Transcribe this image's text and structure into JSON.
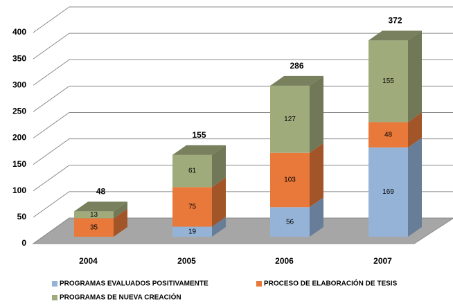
{
  "chart_data": {
    "type": "bar3d_stacked",
    "categories": [
      "2004",
      "2005",
      "2006",
      "2007"
    ],
    "series": [
      {
        "name": "PROGRAMAS EVALUADOS POSITIVAMENTE",
        "color": "#95b3d7",
        "values": [
          null,
          19,
          56,
          169
        ]
      },
      {
        "name": "PROCESO DE ELABORACIÓN DE TESIS",
        "color": "#e8793a",
        "values": [
          35,
          75,
          103,
          48
        ]
      },
      {
        "name": "PROGRAMAS DE NUEVA CREACIÓN",
        "color": "#a0ab7c",
        "values": [
          13,
          61,
          127,
          155
        ]
      }
    ],
    "totals": [
      48,
      155,
      286,
      372
    ],
    "ylim": [
      0,
      400
    ],
    "yticks": [
      0,
      50,
      100,
      150,
      200,
      250,
      300,
      350,
      400
    ],
    "grid": true,
    "legend": "bottom"
  }
}
